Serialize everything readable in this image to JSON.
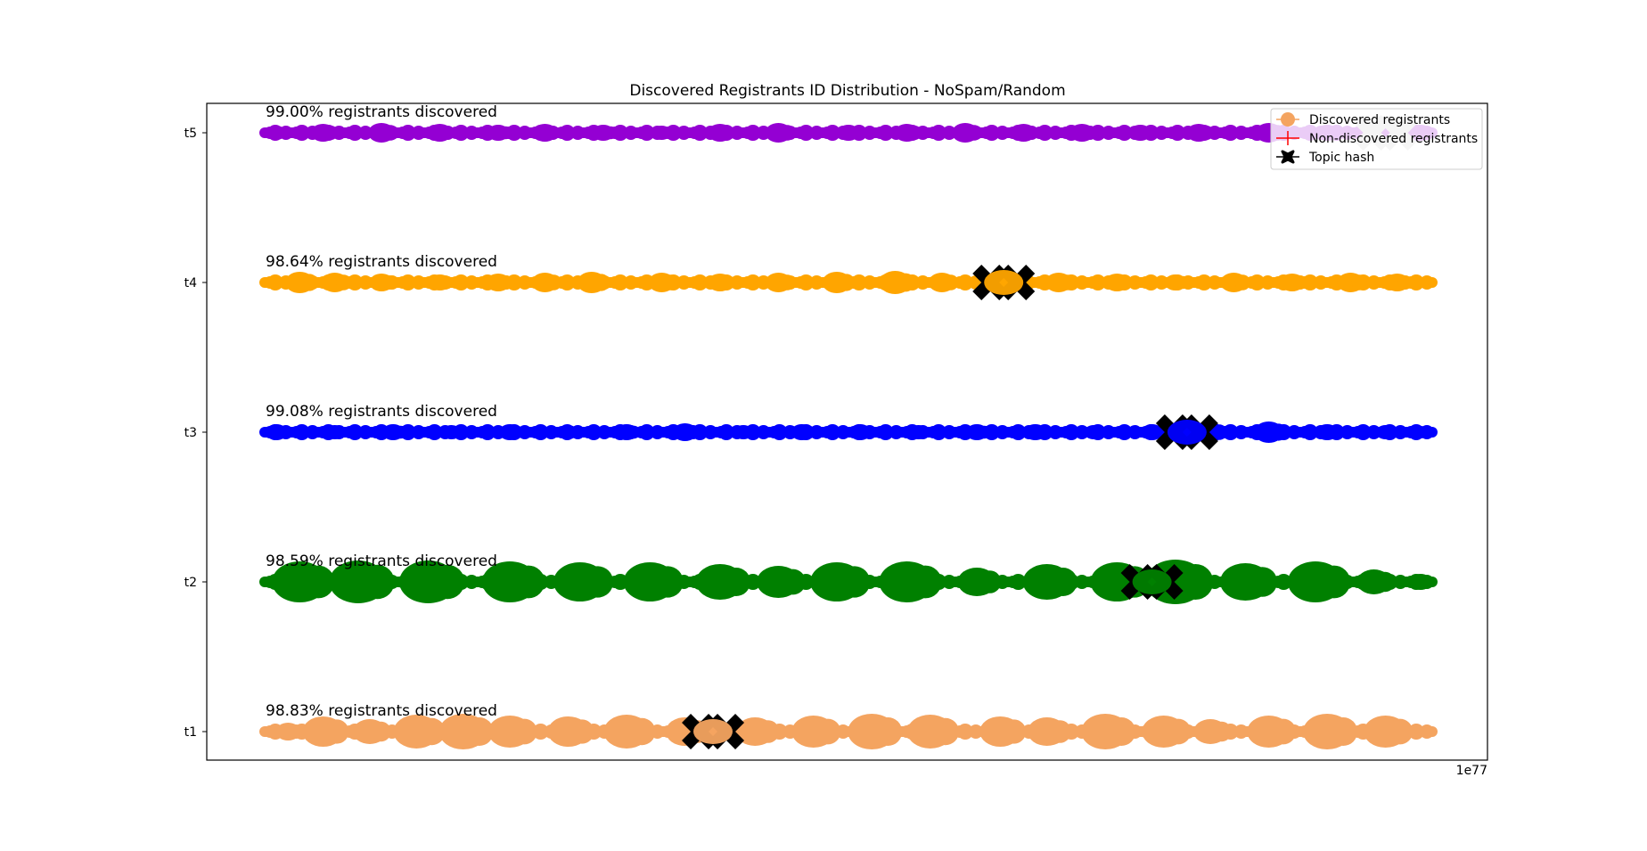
{
  "chart_data": {
    "type": "scatter",
    "title": "Discovered Registrants ID Distribution - NoSpam/Random",
    "xlabel": "",
    "ylabel": "",
    "x_offset_label": "1e77",
    "x_ticks": [],
    "xlim": [
      -0.05,
      1.05
    ],
    "y_categories": [
      "t1",
      "t2",
      "t3",
      "t4",
      "t5"
    ],
    "grid": false,
    "legend": {
      "placement": "top-right",
      "entries": [
        {
          "label": "Discovered registrants",
          "marker": "circle",
          "color": "#f4a460"
        },
        {
          "label": "Non-discovered registrants",
          "marker": "plus",
          "color": "#ff0000"
        },
        {
          "label": "Topic hash",
          "marker": "x",
          "color": "#000000"
        }
      ]
    },
    "series": [
      {
        "topic": "t1",
        "color": "#f4a460",
        "annotation": "98.83% registrants discovered",
        "topic_hash_x": 0.384,
        "blobs": [
          [
            0.02,
            10
          ],
          [
            0.05,
            17
          ],
          [
            0.09,
            14
          ],
          [
            0.13,
            19
          ],
          [
            0.17,
            20
          ],
          [
            0.21,
            18
          ],
          [
            0.26,
            17
          ],
          [
            0.31,
            19
          ],
          [
            0.36,
            16
          ],
          [
            0.42,
            16
          ],
          [
            0.47,
            18
          ],
          [
            0.52,
            20
          ],
          [
            0.57,
            19
          ],
          [
            0.63,
            17
          ],
          [
            0.67,
            16
          ],
          [
            0.72,
            20
          ],
          [
            0.77,
            18
          ],
          [
            0.81,
            14
          ],
          [
            0.86,
            18
          ],
          [
            0.91,
            20
          ],
          [
            0.96,
            18
          ]
        ]
      },
      {
        "topic": "t2",
        "color": "#008000",
        "annotation": "98.59% registrants discovered",
        "topic_hash_x": 0.76,
        "blobs": [
          [
            0.03,
            23
          ],
          [
            0.08,
            24
          ],
          [
            0.14,
            24
          ],
          [
            0.21,
            23
          ],
          [
            0.27,
            22
          ],
          [
            0.33,
            22
          ],
          [
            0.39,
            20
          ],
          [
            0.44,
            18
          ],
          [
            0.49,
            22
          ],
          [
            0.55,
            23
          ],
          [
            0.61,
            16
          ],
          [
            0.67,
            20
          ],
          [
            0.73,
            22
          ],
          [
            0.78,
            25
          ],
          [
            0.84,
            21
          ],
          [
            0.9,
            23
          ],
          [
            0.95,
            14
          ],
          [
            0.99,
            9
          ]
        ]
      },
      {
        "topic": "t3",
        "color": "#0000ff",
        "annotation": "99.08% registrants discovered",
        "topic_hash_x": 0.79,
        "blobs": [
          [
            0.01,
            9
          ],
          [
            0.06,
            8
          ],
          [
            0.11,
            9
          ],
          [
            0.16,
            8
          ],
          [
            0.21,
            9
          ],
          [
            0.26,
            8
          ],
          [
            0.31,
            9
          ],
          [
            0.36,
            10
          ],
          [
            0.41,
            8
          ],
          [
            0.46,
            9
          ],
          [
            0.51,
            9
          ],
          [
            0.56,
            8
          ],
          [
            0.61,
            9
          ],
          [
            0.66,
            9
          ],
          [
            0.71,
            8
          ],
          [
            0.76,
            9
          ],
          [
            0.81,
            11
          ],
          [
            0.86,
            12
          ],
          [
            0.91,
            9
          ],
          [
            0.96,
            8
          ],
          [
            0.99,
            7
          ]
        ]
      },
      {
        "topic": "t4",
        "color": "#ffa500",
        "annotation": "98.64% registrants discovered",
        "topic_hash_x": 0.633,
        "blobs": [
          [
            0.03,
            12
          ],
          [
            0.06,
            11
          ],
          [
            0.1,
            10
          ],
          [
            0.15,
            9
          ],
          [
            0.2,
            10
          ],
          [
            0.24,
            11
          ],
          [
            0.28,
            12
          ],
          [
            0.34,
            11
          ],
          [
            0.39,
            10
          ],
          [
            0.44,
            11
          ],
          [
            0.49,
            12
          ],
          [
            0.54,
            13
          ],
          [
            0.58,
            11
          ],
          [
            0.63,
            10
          ],
          [
            0.68,
            11
          ],
          [
            0.73,
            10
          ],
          [
            0.78,
            9
          ],
          [
            0.83,
            11
          ],
          [
            0.88,
            10
          ],
          [
            0.93,
            11
          ],
          [
            0.97,
            10
          ]
        ]
      },
      {
        "topic": "t5",
        "color": "#9400d3",
        "annotation": "99.00% registrants discovered",
        "topic_hash_x": 0.96,
        "blobs": [
          [
            0.01,
            8
          ],
          [
            0.05,
            10
          ],
          [
            0.1,
            11
          ],
          [
            0.15,
            10
          ],
          [
            0.2,
            9
          ],
          [
            0.24,
            10
          ],
          [
            0.29,
            9
          ],
          [
            0.34,
            8
          ],
          [
            0.39,
            10
          ],
          [
            0.44,
            11
          ],
          [
            0.5,
            9
          ],
          [
            0.55,
            10
          ],
          [
            0.6,
            11
          ],
          [
            0.65,
            10
          ],
          [
            0.7,
            10
          ],
          [
            0.75,
            9
          ],
          [
            0.8,
            10
          ],
          [
            0.86,
            11
          ],
          [
            0.91,
            9
          ],
          [
            0.95,
            10
          ],
          [
            0.99,
            9
          ]
        ]
      }
    ]
  }
}
